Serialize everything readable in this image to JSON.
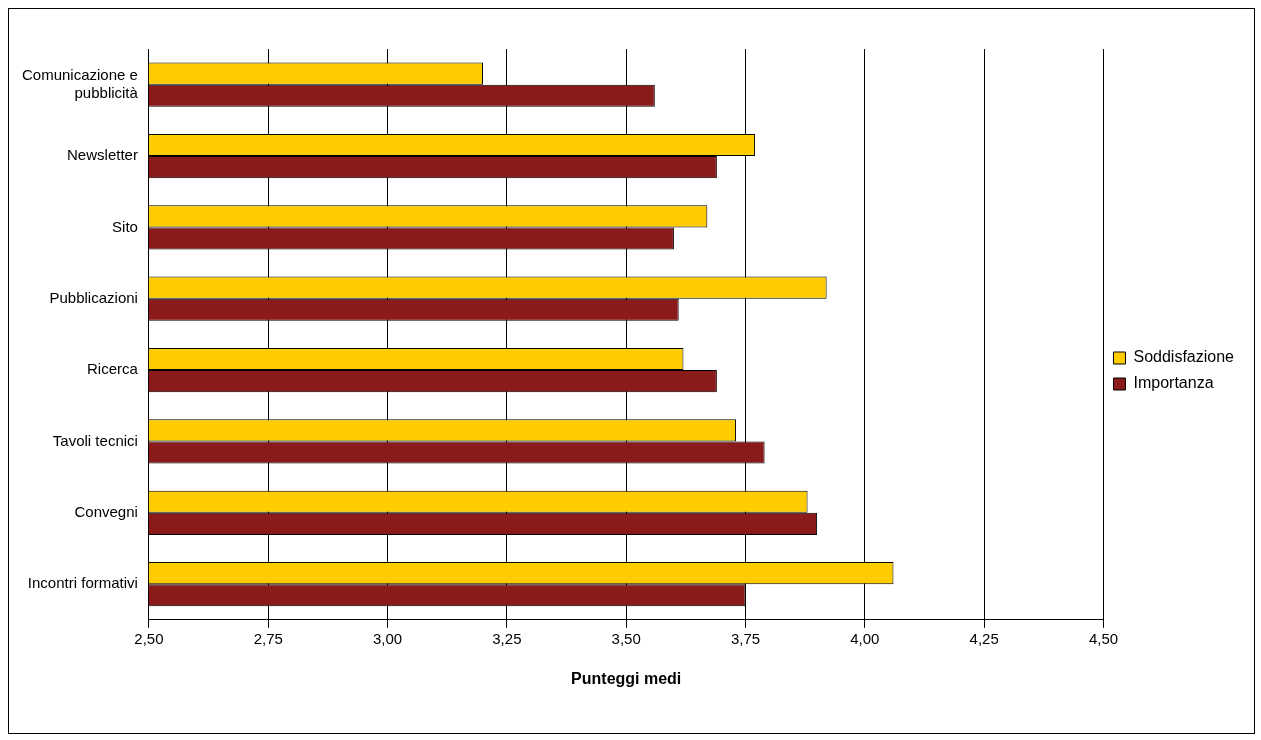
{
  "chart_data": {
    "type": "bar",
    "orientation": "horizontal",
    "xlabel": "Punteggi medi",
    "categories": [
      "Comunicazione e pubblicità",
      "Newsletter",
      "Sito",
      "Pubblicazioni",
      "Ricerca",
      "Tavoli tecnici",
      "Convegni",
      "Incontri formativi"
    ],
    "series": [
      {
        "name": "Soddisfazione",
        "color": "#ffcc00",
        "values": [
          3.2,
          3.77,
          3.67,
          3.92,
          3.62,
          3.73,
          3.88,
          4.06
        ]
      },
      {
        "name": "Importanza",
        "color": "#8b1a1a",
        "values": [
          3.56,
          3.69,
          3.6,
          3.61,
          3.69,
          3.79,
          3.9,
          3.75
        ]
      }
    ],
    "xlim": [
      2.5,
      4.5
    ],
    "xticks": [
      {
        "value": 2.5,
        "label": "2,50"
      },
      {
        "value": 2.75,
        "label": "2,75"
      },
      {
        "value": 3,
        "label": "3,00"
      },
      {
        "value": 3.25,
        "label": "3,25"
      },
      {
        "value": 3.5,
        "label": "3,50"
      },
      {
        "value": 3.75,
        "label": "3,75"
      },
      {
        "value": 4,
        "label": "4,00"
      },
      {
        "value": 4.25,
        "label": "4,25"
      },
      {
        "value": 4.5,
        "label": "4,50"
      }
    ],
    "grid": "x",
    "legend": "right"
  }
}
